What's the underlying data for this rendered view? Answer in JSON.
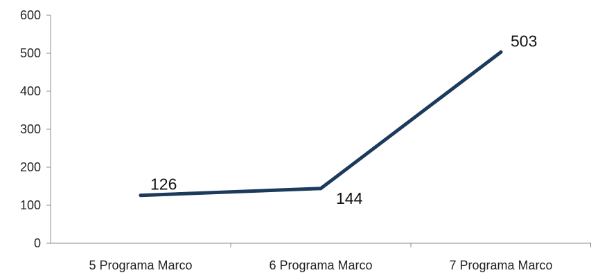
{
  "chart_data": {
    "type": "line",
    "title": "",
    "xlabel": "",
    "ylabel": "",
    "categories": [
      "5 Programa Marco",
      "6 Programa Marco",
      "7 Programa Marco"
    ],
    "series": [
      {
        "values": [
          126,
          144,
          503
        ],
        "color": "#1b3a5c"
      }
    ],
    "ylim": [
      0,
      600
    ],
    "yticks": [
      0,
      100,
      200,
      300,
      400,
      500,
      600
    ],
    "grid": false,
    "legend": "none",
    "data_labels": true
  }
}
